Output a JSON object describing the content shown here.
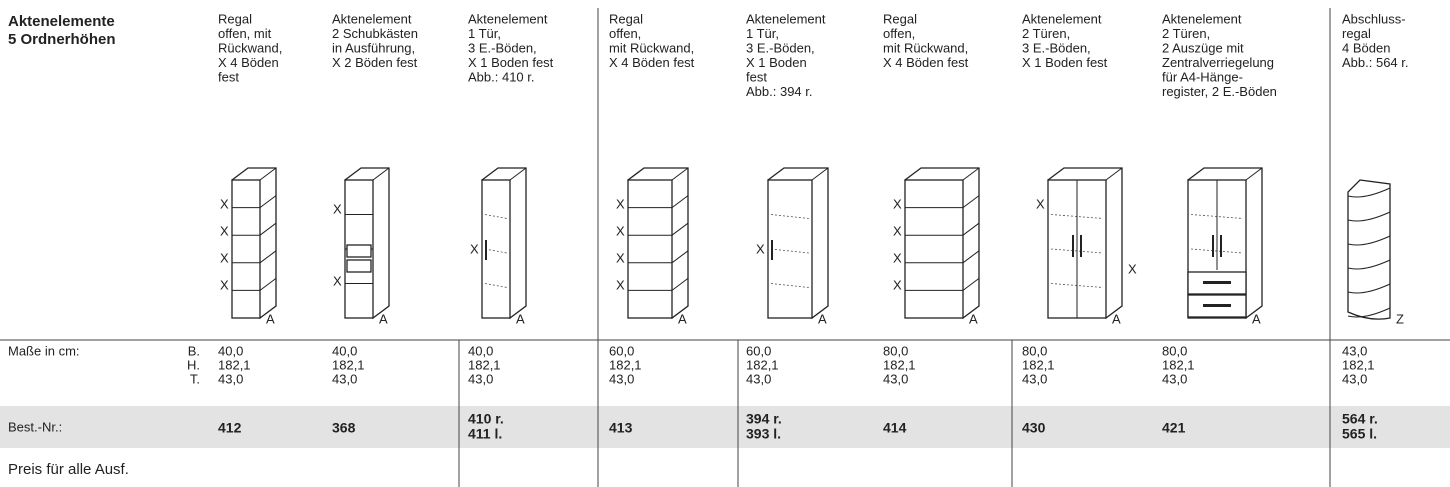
{
  "header": {
    "title_lines": [
      "Aktenelemente",
      "5 Ordnerhöhen"
    ]
  },
  "labels": {
    "dims": "Maße in cm:",
    "dim_keys": [
      "B.",
      "H.",
      "T."
    ],
    "order": "Best.-Nr.:",
    "price": "Preis für alle Ausf."
  },
  "columns": [
    {
      "description": [
        "Regal",
        "offen, mit",
        "Rückwand,",
        "X 4 Böden",
        "fest"
      ],
      "x_marks": [
        "X",
        "X",
        "X",
        "X"
      ],
      "letter": "A",
      "dims": [
        "40,0",
        "182,1",
        "43,0"
      ],
      "order_no": [
        "412"
      ]
    },
    {
      "description": [
        "Aktenelement",
        "2 Schubkästen",
        "in Ausführung,",
        "X 2 Böden fest"
      ],
      "x_marks": [
        "X",
        "X"
      ],
      "letter": "A",
      "dims": [
        "40,0",
        "182,1",
        "43,0"
      ],
      "order_no": [
        "368"
      ]
    },
    {
      "description": [
        "Aktenelement",
        "1 Tür,",
        "3 E.-Böden,",
        "X 1 Boden fest",
        "Abb.: 410 r."
      ],
      "x_marks": [
        "X"
      ],
      "letter": "A",
      "dims": [
        "40,0",
        "182,1",
        "43,0"
      ],
      "order_no": [
        "410 r.",
        "411 l."
      ]
    },
    {
      "description": [
        "Regal",
        "offen,",
        "mit Rückwand,",
        "X 4 Böden fest"
      ],
      "x_marks": [
        "X",
        "X",
        "X",
        "X"
      ],
      "letter": "A",
      "dims": [
        "60,0",
        "182,1",
        "43,0"
      ],
      "order_no": [
        "413"
      ]
    },
    {
      "description": [
        "Aktenelement",
        "1 Tür,",
        "3 E.-Böden,",
        "X 1 Boden",
        "fest",
        "Abb.: 394 r."
      ],
      "x_marks": [
        "X"
      ],
      "letter": "A",
      "dims": [
        "60,0",
        "182,1",
        "43,0"
      ],
      "order_no": [
        "394 r.",
        "393 l."
      ]
    },
    {
      "description": [
        "Regal",
        "offen,",
        "mit Rückwand,",
        "X 4 Böden fest"
      ],
      "x_marks": [
        "X",
        "X",
        "X",
        "X"
      ],
      "letter": "A",
      "dims": [
        "80,0",
        "182,1",
        "43,0"
      ],
      "order_no": [
        "414"
      ]
    },
    {
      "description": [
        "Aktenelement",
        "2 Türen,",
        "3 E.-Böden,",
        "X 1 Boden fest"
      ],
      "x_marks": [
        "X",
        "X"
      ],
      "letter": "A",
      "dims": [
        "80,0",
        "182,1",
        "43,0"
      ],
      "order_no": [
        "430"
      ]
    },
    {
      "description": [
        "Aktenelement",
        "2 Türen,",
        "2 Auszüge mit",
        "Zentralverriegelung",
        "für A4-Hänge-",
        "register, 2 E.-Böden"
      ],
      "x_marks": [],
      "letter": "A",
      "dims": [
        "80,0",
        "182,1",
        "43,0"
      ],
      "order_no": [
        "421"
      ]
    },
    {
      "description": [
        "Abschluss-",
        "regal",
        "4 Böden",
        "Abb.: 564 r."
      ],
      "x_marks": [],
      "letter": "Z",
      "dims": [
        "43,0",
        "182,1",
        "43,0"
      ],
      "order_no": [
        "564 r.",
        "565 l."
      ]
    }
  ]
}
